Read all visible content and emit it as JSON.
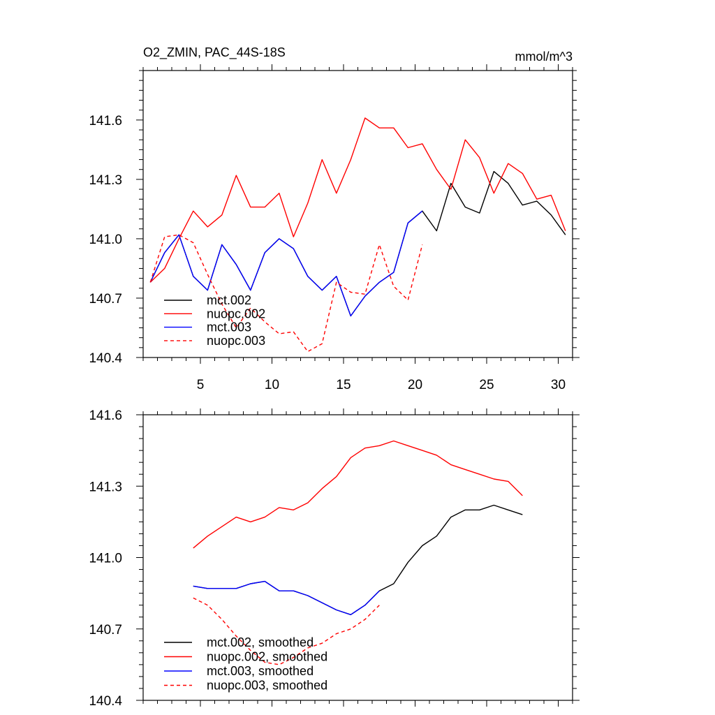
{
  "colors": {
    "black": "#000000",
    "red": "#ff0000",
    "blue": "#0000ff",
    "frame": "#000000"
  },
  "chart_data": [
    {
      "type": "line",
      "title": "O2_ZMIN, PAC_44S-18S",
      "units": "mmol/m^3",
      "xlim": [
        1,
        31
      ],
      "ylim": [
        140.4,
        141.85
      ],
      "xticks": [
        5,
        10,
        15,
        20,
        25,
        30
      ],
      "xtick_labels": [
        "5",
        "10",
        "15",
        "20",
        "25",
        "30"
      ],
      "yticks": [
        140.4,
        140.7,
        141.0,
        141.3,
        141.6
      ],
      "ytick_labels": [
        "140.4",
        "140.7",
        "141.0",
        "141.3",
        "141.6"
      ],
      "legend_position": "bottom-left",
      "series": [
        {
          "name": "mct.002",
          "color": "#000000",
          "dash": "solid",
          "x": [
            1.5,
            2.5,
            3.5,
            4.5,
            5.5,
            6.5,
            7.5,
            8.5,
            9.5,
            10.5,
            11.5,
            12.5,
            13.5,
            14.5,
            15.5,
            16.5,
            17.5,
            18.5,
            19.5,
            20.5,
            21.5,
            22.5,
            23.5,
            24.5,
            25.5,
            26.5,
            27.5,
            28.5,
            29.5,
            30.5
          ],
          "values": [
            140.78,
            140.93,
            141.02,
            140.81,
            140.74,
            140.97,
            140.87,
            140.74,
            140.93,
            141.0,
            140.95,
            140.81,
            140.74,
            140.81,
            140.61,
            140.71,
            140.78,
            140.83,
            141.08,
            141.14,
            141.04,
            141.28,
            141.16,
            141.13,
            141.34,
            141.28,
            141.17,
            141.19,
            141.12,
            141.02
          ]
        },
        {
          "name": "nuopc.002",
          "color": "#ff0000",
          "dash": "solid",
          "x": [
            1.5,
            2.5,
            3.5,
            4.5,
            5.5,
            6.5,
            7.5,
            8.5,
            9.5,
            10.5,
            11.5,
            12.5,
            13.5,
            14.5,
            15.5,
            16.5,
            17.5,
            18.5,
            19.5,
            20.5,
            21.5,
            22.5,
            23.5,
            24.5,
            25.5,
            26.5,
            27.5,
            28.5,
            29.5,
            30.5
          ],
          "values": [
            140.78,
            140.85,
            141.0,
            141.14,
            141.06,
            141.12,
            141.32,
            141.16,
            141.16,
            141.23,
            141.01,
            141.18,
            141.4,
            141.23,
            141.4,
            141.61,
            141.56,
            141.56,
            141.46,
            141.48,
            141.35,
            141.25,
            141.5,
            141.41,
            141.23,
            141.38,
            141.33,
            141.2,
            141.22,
            141.04
          ]
        },
        {
          "name": "mct.003",
          "color": "#0000ff",
          "dash": "solid",
          "x": [
            1.5,
            2.5,
            3.5,
            4.5,
            5.5,
            6.5,
            7.5,
            8.5,
            9.5,
            10.5,
            11.5,
            12.5,
            13.5,
            14.5,
            15.5,
            16.5,
            17.5,
            18.5,
            19.5,
            20.5
          ],
          "values": [
            140.78,
            140.93,
            141.02,
            140.81,
            140.74,
            140.97,
            140.87,
            140.74,
            140.93,
            141.0,
            140.95,
            140.81,
            140.74,
            140.81,
            140.61,
            140.71,
            140.78,
            140.83,
            141.08,
            141.14
          ]
        },
        {
          "name": "nuopc.003",
          "color": "#ff0000",
          "dash": "dashed",
          "x": [
            1.5,
            2.5,
            3.5,
            4.5,
            5.5,
            6.5,
            7.5,
            8.5,
            9.5,
            10.5,
            11.5,
            12.5,
            13.5,
            14.5,
            15.5,
            16.5,
            17.5,
            18.5,
            19.5,
            20.5
          ],
          "values": [
            140.78,
            141.01,
            141.02,
            140.98,
            140.82,
            140.67,
            140.55,
            140.65,
            140.58,
            140.52,
            140.53,
            140.43,
            140.47,
            140.78,
            140.73,
            140.72,
            140.97,
            140.76,
            140.69,
            140.97
          ]
        }
      ]
    },
    {
      "type": "line",
      "title": "",
      "units": "",
      "xlim": [
        1,
        31
      ],
      "ylim": [
        140.4,
        141.6
      ],
      "xticks": [
        5,
        10,
        15,
        20,
        25,
        30
      ],
      "xtick_labels": [],
      "yticks": [
        140.4,
        140.7,
        141.0,
        141.3,
        141.6
      ],
      "ytick_labels": [
        "140.4",
        "140.7",
        "141.0",
        "141.3",
        "141.6"
      ],
      "legend_position": "bottom-left",
      "series": [
        {
          "name": "mct.002, smoothed",
          "color": "#000000",
          "dash": "solid",
          "x": [
            4.5,
            5.5,
            6.5,
            7.5,
            8.5,
            9.5,
            10.5,
            11.5,
            12.5,
            13.5,
            14.5,
            15.5,
            16.5,
            17.5,
            18.5,
            19.5,
            20.5,
            21.5,
            22.5,
            23.5,
            24.5,
            25.5,
            26.5,
            27.5
          ],
          "values": [
            140.88,
            140.87,
            140.87,
            140.87,
            140.89,
            140.9,
            140.86,
            140.86,
            140.84,
            140.81,
            140.78,
            140.76,
            140.8,
            140.86,
            140.89,
            140.98,
            141.05,
            141.09,
            141.17,
            141.2,
            141.2,
            141.22,
            141.2,
            141.18
          ]
        },
        {
          "name": "nuopc.002, smoothed",
          "color": "#ff0000",
          "dash": "solid",
          "x": [
            4.5,
            5.5,
            6.5,
            7.5,
            8.5,
            9.5,
            10.5,
            11.5,
            12.5,
            13.5,
            14.5,
            15.5,
            16.5,
            17.5,
            18.5,
            19.5,
            20.5,
            21.5,
            22.5,
            23.5,
            24.5,
            25.5,
            26.5,
            27.5
          ],
          "values": [
            141.04,
            141.09,
            141.13,
            141.17,
            141.15,
            141.17,
            141.21,
            141.2,
            141.23,
            141.29,
            141.34,
            141.42,
            141.46,
            141.47,
            141.49,
            141.47,
            141.45,
            141.43,
            141.39,
            141.37,
            141.35,
            141.33,
            141.32,
            141.26
          ]
        },
        {
          "name": "mct.003, smoothed",
          "color": "#0000ff",
          "dash": "solid",
          "x": [
            4.5,
            5.5,
            6.5,
            7.5,
            8.5,
            9.5,
            10.5,
            11.5,
            12.5,
            13.5,
            14.5,
            15.5,
            16.5,
            17.5
          ],
          "values": [
            140.88,
            140.87,
            140.87,
            140.87,
            140.89,
            140.9,
            140.86,
            140.86,
            140.84,
            140.81,
            140.78,
            140.76,
            140.8,
            140.86
          ]
        },
        {
          "name": "nuopc.003, smoothed",
          "color": "#ff0000",
          "dash": "dashed",
          "x": [
            4.5,
            5.5,
            6.5,
            7.5,
            8.5,
            9.5,
            10.5,
            11.5,
            12.5,
            13.5,
            14.5,
            15.5,
            16.5,
            17.5
          ],
          "values": [
            140.83,
            140.8,
            140.74,
            140.67,
            140.61,
            140.56,
            140.55,
            140.58,
            140.62,
            140.64,
            140.68,
            140.7,
            140.74,
            140.8
          ]
        }
      ]
    }
  ]
}
